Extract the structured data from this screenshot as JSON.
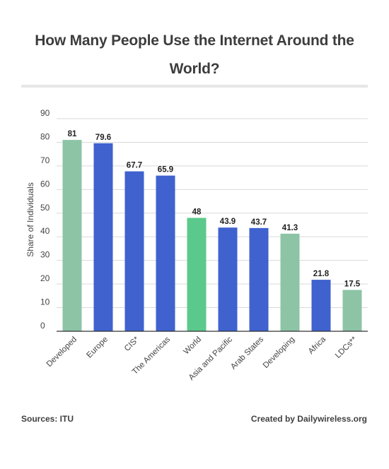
{
  "chart_data": {
    "type": "bar",
    "title": "How Many People Use the Internet Around the World?",
    "xlabel": "",
    "ylabel": "Share of Individuals",
    "ylim": [
      0,
      90
    ],
    "yticks": [
      0,
      10,
      20,
      30,
      40,
      50,
      60,
      70,
      80,
      90
    ],
    "grid": true,
    "categories": [
      "Developed",
      "Europe",
      "CIS*",
      "The Americas",
      "World",
      "Asia and Pacific",
      "Arab States",
      "Developing",
      "Africa",
      "LDCs**"
    ],
    "values": [
      81,
      79.6,
      67.7,
      65.9,
      48,
      43.9,
      43.7,
      41.3,
      21.8,
      17.5
    ],
    "value_labels": [
      "81",
      "79.6",
      "67.7",
      "65.9",
      "48",
      "43.9",
      "43.7",
      "41.3",
      "21.8",
      "17.5"
    ],
    "bar_colors": [
      "#8dc4a6",
      "#3f62cf",
      "#3f62cf",
      "#3f62cf",
      "#5bc98b",
      "#3f62cf",
      "#3f62cf",
      "#8dc4a6",
      "#3f62cf",
      "#8dc4a6"
    ]
  },
  "footer": {
    "source": "Sources: ITU",
    "credit": "Created by Dailywireless.org"
  }
}
